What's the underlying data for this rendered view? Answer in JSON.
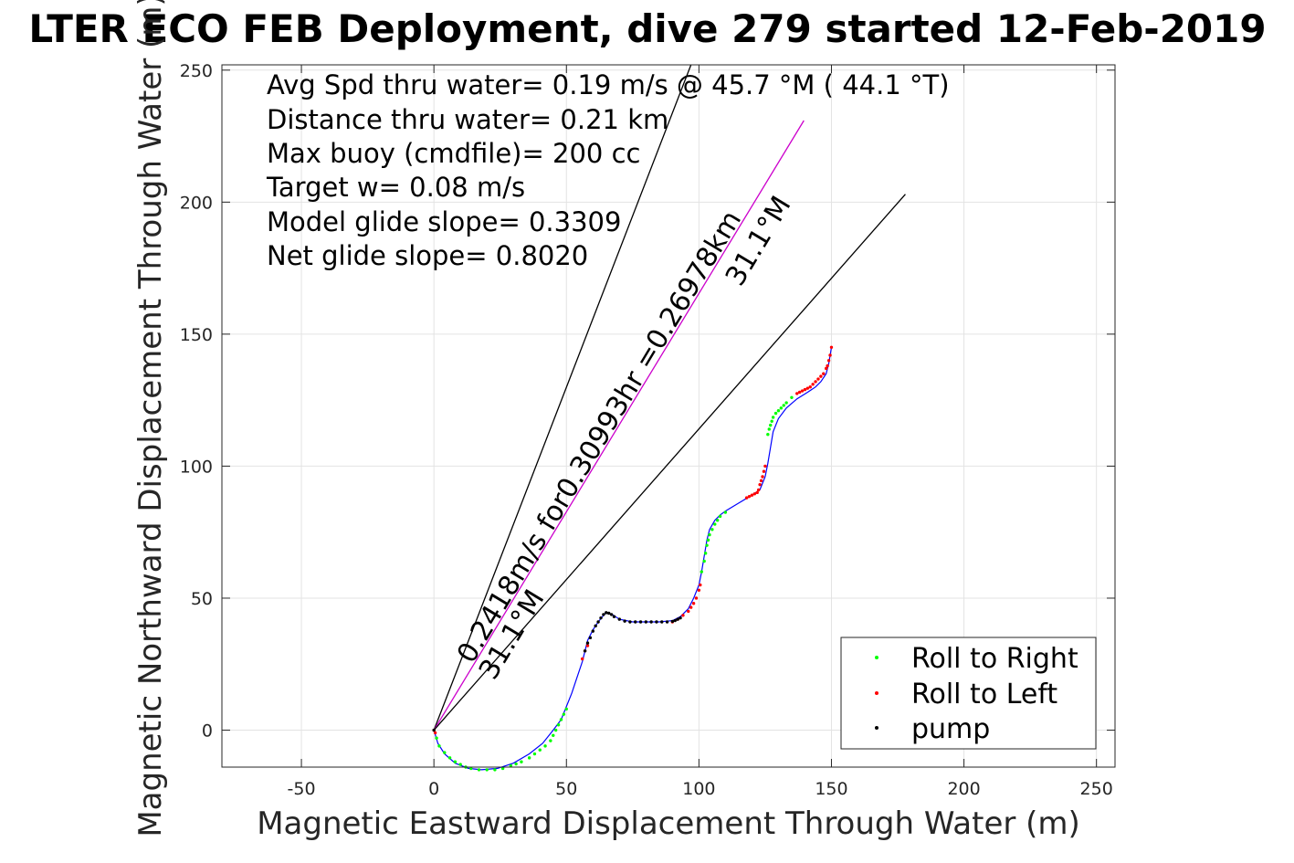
{
  "chart_data": {
    "type": "scatter",
    "title": "LTER ECO FEB Deployment, dive 279 started 12-Feb-2019",
    "xlabel": "Magnetic Eastward Displacement Through Water (m)",
    "ylabel": "Magnetic Northward Displacement Through Water (m)",
    "xlim": [
      -80,
      257
    ],
    "ylim": [
      -14,
      252
    ],
    "xticks": [
      -50,
      0,
      50,
      100,
      150,
      200,
      250
    ],
    "yticks": [
      0,
      50,
      100,
      150,
      200,
      250
    ],
    "xtick_labels": [
      "-50",
      "0",
      "50",
      "100",
      "150",
      "200",
      "250"
    ],
    "ytick_labels": [
      "0",
      "50",
      "100",
      "150",
      "200",
      "250"
    ],
    "grid": true,
    "annotations": [
      "Avg Spd thru water=  0.19 m/s @  45.7 °M ( 44.1 °T)",
      "Distance thru water=  0.21 km",
      "Max buoy (cmdfile)= 200 cc",
      "Target w= 0.08 m/s",
      "Model glide slope= 0.3309",
      "Net glide slope= 0.8020"
    ],
    "rotated_labels": {
      "line_label": "0.2418m/s for0.30993hr =0.26978km",
      "heading_upper": "31.1°M",
      "heading_lower": "31.1°M"
    },
    "reference_lines": [
      {
        "x": [
          0,
          97
        ],
        "y": [
          0,
          252
        ],
        "color": "#000000"
      },
      {
        "x": [
          0,
          139.6
        ],
        "y": [
          0,
          230.9
        ],
        "color": "#cc00cc"
      },
      {
        "x": [
          0,
          177.9
        ],
        "y": [
          0,
          203
        ],
        "color": "#000000"
      }
    ],
    "path": {
      "color": "#0000ff",
      "x": [
        0,
        1.5,
        4,
        8,
        13,
        18,
        24,
        30,
        36,
        41,
        45,
        48,
        50,
        52,
        54,
        56,
        57,
        58,
        60,
        62,
        64,
        65,
        67,
        70,
        75,
        80,
        85,
        90,
        93,
        96,
        98,
        100,
        101,
        102,
        103,
        104,
        106,
        108,
        110,
        115,
        120,
        123,
        125,
        126,
        127,
        128,
        130,
        133,
        137,
        141,
        144,
        146,
        148,
        149,
        150
      ],
      "y": [
        0,
        -5,
        -9,
        -12.5,
        -14.5,
        -15,
        -14.5,
        -12.5,
        -9,
        -5,
        0,
        4,
        9,
        14,
        20,
        26,
        30,
        34,
        38,
        41,
        43.5,
        44.5,
        44,
        42,
        41,
        41,
        41,
        41.5,
        43,
        46,
        50,
        55,
        60,
        66,
        72,
        76,
        79.5,
        81.5,
        83,
        86,
        89,
        91,
        96,
        101,
        107,
        113,
        118,
        122,
        125.5,
        128,
        130,
        132,
        135,
        139,
        145
      ]
    },
    "legend": {
      "placement": "bottom-right",
      "entries": [
        {
          "label": "Roll to Right",
          "color": "#00ff00"
        },
        {
          "label": "Roll to Left",
          "color": "#ff0000"
        },
        {
          "label": "pump",
          "color": "#000000"
        }
      ]
    },
    "series": [
      {
        "name": "Roll to Right",
        "color": "#00ff00",
        "x": [
          1,
          2,
          4,
          6,
          8,
          10,
          12,
          14,
          17,
          20,
          23,
          26,
          29,
          31,
          33,
          36,
          38,
          40,
          42,
          44,
          45,
          46,
          47,
          48,
          49,
          50,
          101,
          102,
          102.5,
          103,
          103.5,
          104,
          105,
          106,
          107,
          108,
          110,
          126,
          126.5,
          127,
          127.5,
          128,
          129,
          130,
          131,
          132,
          133,
          135
        ],
        "y": [
          -3,
          -6,
          -8.5,
          -10.5,
          -12,
          -13,
          -14,
          -14.5,
          -15,
          -15,
          -15,
          -14.5,
          -13.5,
          -12.8,
          -12,
          -10.5,
          -9,
          -7.5,
          -6,
          -4,
          -2,
          0,
          2,
          4,
          6,
          8,
          60,
          64,
          67,
          70,
          72,
          74,
          76,
          78,
          79.5,
          81,
          82.5,
          112,
          114,
          115.5,
          117,
          118.5,
          120,
          121,
          122,
          123,
          124,
          126
        ]
      },
      {
        "name": "Roll to Left",
        "color": "#ff0000",
        "x": [
          0,
          0.5,
          56,
          57,
          58,
          90,
          92,
          94,
          96,
          97,
          98,
          99,
          100,
          100.5,
          118,
          119,
          120,
          121,
          122,
          122.5,
          123,
          123.5,
          124,
          124.5,
          125,
          137,
          138,
          139,
          140,
          141,
          142,
          143,
          144,
          145,
          146,
          147,
          148,
          148.5,
          149,
          149.5,
          150
        ],
        "y": [
          0,
          -1,
          27,
          30,
          32,
          41,
          42,
          43.5,
          45,
          46.5,
          48,
          50,
          53,
          55,
          88,
          88.5,
          89,
          89.5,
          90,
          91,
          93,
          94.5,
          96,
          98,
          100,
          127.5,
          128,
          128.5,
          129,
          129.5,
          130,
          131,
          132,
          133,
          134,
          135,
          137,
          138,
          140,
          142,
          145
        ]
      },
      {
        "name": "pump",
        "color": "#000000",
        "x": [
          0,
          57,
          58,
          59,
          60,
          61,
          62,
          63,
          64,
          65,
          66,
          67,
          68,
          70,
          72,
          74,
          76,
          78,
          80,
          82,
          84,
          86,
          88,
          90,
          91,
          92,
          93
        ],
        "y": [
          0,
          30,
          33,
          35,
          37.5,
          39.5,
          41,
          42.5,
          43.8,
          44.5,
          44.3,
          43.8,
          43,
          42,
          41.3,
          41,
          41,
          41,
          41,
          41,
          41,
          41,
          41,
          41.2,
          41.5,
          42,
          42.5
        ]
      }
    ]
  }
}
